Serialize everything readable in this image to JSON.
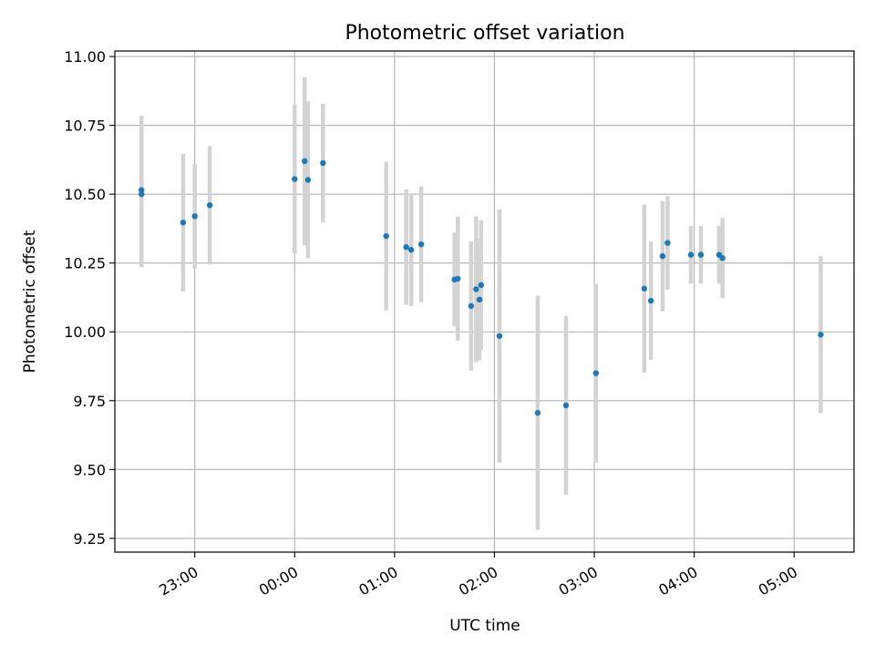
{
  "chart_data": {
    "type": "scatter",
    "title": "Photometric offset variation",
    "xlabel": "UTC time",
    "ylabel": "Photometric offset",
    "x_unit": "UTC time (HH:MM, across midnight)",
    "xlim": [
      "22:12",
      "05:36"
    ],
    "ylim": [
      9.2,
      11.02
    ],
    "xticks": [
      "23:00",
      "00:00",
      "01:00",
      "02:00",
      "03:00",
      "04:00",
      "05:00"
    ],
    "yticks": [
      "9.25",
      "9.50",
      "9.75",
      "10.00",
      "10.25",
      "10.50",
      "10.75",
      "11.00"
    ],
    "grid": true,
    "marker_color": "#1f77b4",
    "errorbar_color": "#d3d3d3",
    "points": [
      {
        "t": "22:28",
        "y": 10.515,
        "yerr": 0.27
      },
      {
        "t": "22:28",
        "y": 10.5,
        "yerr": 0.265
      },
      {
        "t": "22:53",
        "y": 10.397,
        "yerr": 0.25
      },
      {
        "t": "23:00",
        "y": 10.42,
        "yerr": 0.19
      },
      {
        "t": "23:09",
        "y": 10.46,
        "yerr": 0.215
      },
      {
        "t": "00:00",
        "y": 10.555,
        "yerr": 0.27
      },
      {
        "t": "00:06",
        "y": 10.62,
        "yerr": 0.305
      },
      {
        "t": "00:08",
        "y": 10.552,
        "yerr": 0.285
      },
      {
        "t": "00:17",
        "y": 10.613,
        "yerr": 0.215
      },
      {
        "t": "00:55",
        "y": 10.348,
        "yerr": 0.27
      },
      {
        "t": "01:07",
        "y": 10.308,
        "yerr": 0.21
      },
      {
        "t": "01:10",
        "y": 10.298,
        "yerr": 0.205
      },
      {
        "t": "01:16",
        "y": 10.318,
        "yerr": 0.21
      },
      {
        "t": "01:36",
        "y": 10.19,
        "yerr": 0.17
      },
      {
        "t": "01:38",
        "y": 10.193,
        "yerr": 0.225
      },
      {
        "t": "01:46",
        "y": 10.094,
        "yerr": 0.235
      },
      {
        "t": "01:49",
        "y": 10.155,
        "yerr": 0.265
      },
      {
        "t": "01:51",
        "y": 10.117,
        "yerr": 0.22
      },
      {
        "t": "01:52",
        "y": 10.17,
        "yerr": 0.235
      },
      {
        "t": "02:03",
        "y": 9.985,
        "yerr": 0.46
      },
      {
        "t": "02:26",
        "y": 9.706,
        "yerr": 0.425
      },
      {
        "t": "02:43",
        "y": 9.733,
        "yerr": 0.325
      },
      {
        "t": "03:01",
        "y": 9.85,
        "yerr": 0.325
      },
      {
        "t": "03:30",
        "y": 10.157,
        "yerr": 0.305
      },
      {
        "t": "03:34",
        "y": 10.113,
        "yerr": 0.215
      },
      {
        "t": "03:41",
        "y": 10.275,
        "yerr": 0.2
      },
      {
        "t": "03:44",
        "y": 10.323,
        "yerr": 0.17
      },
      {
        "t": "03:58",
        "y": 10.28,
        "yerr": 0.105
      },
      {
        "t": "04:04",
        "y": 10.28,
        "yerr": 0.105
      },
      {
        "t": "04:15",
        "y": 10.28,
        "yerr": 0.105
      },
      {
        "t": "04:17",
        "y": 10.268,
        "yerr": 0.145
      },
      {
        "t": "05:16",
        "y": 9.99,
        "yerr": 0.285
      }
    ]
  }
}
